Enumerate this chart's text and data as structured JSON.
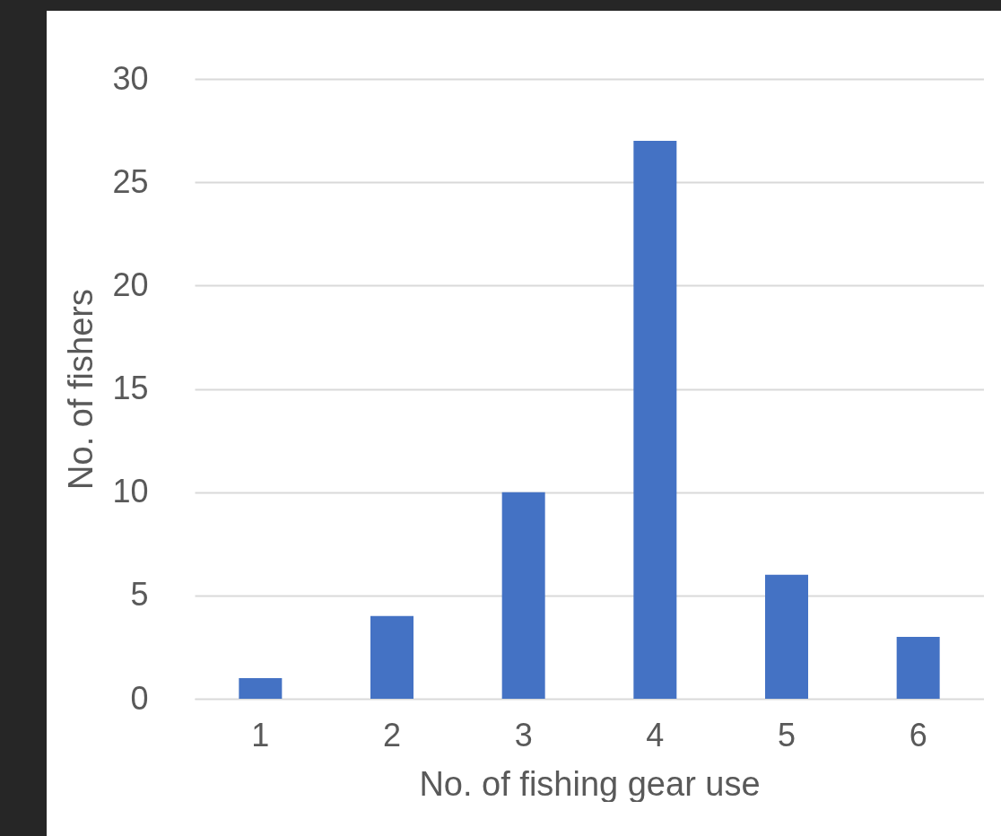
{
  "chart_data": {
    "type": "bar",
    "xlabel": "No. of fishing gear use",
    "ylabel": "No. of fishers",
    "categories": [
      "1",
      "2",
      "3",
      "4",
      "5",
      "6"
    ],
    "values": [
      1,
      4,
      10,
      27,
      6,
      3
    ],
    "color": "#4472c4",
    "ylim": [
      0,
      30
    ],
    "yticks": [
      0,
      5,
      10,
      15,
      20,
      25,
      30
    ],
    "grid": "y"
  }
}
